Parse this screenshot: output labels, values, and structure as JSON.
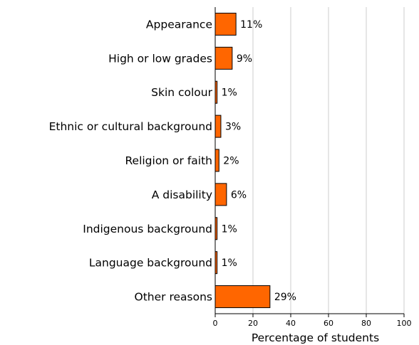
{
  "chart_data": {
    "type": "bar",
    "orientation": "horizontal",
    "categories": [
      "Appearance",
      "High or low grades",
      "Skin colour",
      "Ethnic or cultural background",
      "Religion or faith",
      "A disability",
      "Indigenous background",
      "Language background",
      "Other reasons"
    ],
    "values": [
      11,
      9,
      1,
      3,
      2,
      6,
      1,
      1,
      29
    ],
    "value_labels": [
      "11%",
      "9%",
      "1%",
      "3%",
      "2%",
      "6%",
      "1%",
      "1%",
      "29%"
    ],
    "xlabel": "Percentage of students",
    "xlim": [
      0,
      100
    ],
    "xticks": [
      0,
      20,
      40,
      60,
      80,
      100
    ],
    "xtick_labels": [
      "0",
      "20",
      "40",
      "60",
      "80",
      "100"
    ],
    "grid": "vertical",
    "bar_color": "#ff6600",
    "bar_edge_color": "#000000",
    "grid_color": "#cccccc"
  }
}
